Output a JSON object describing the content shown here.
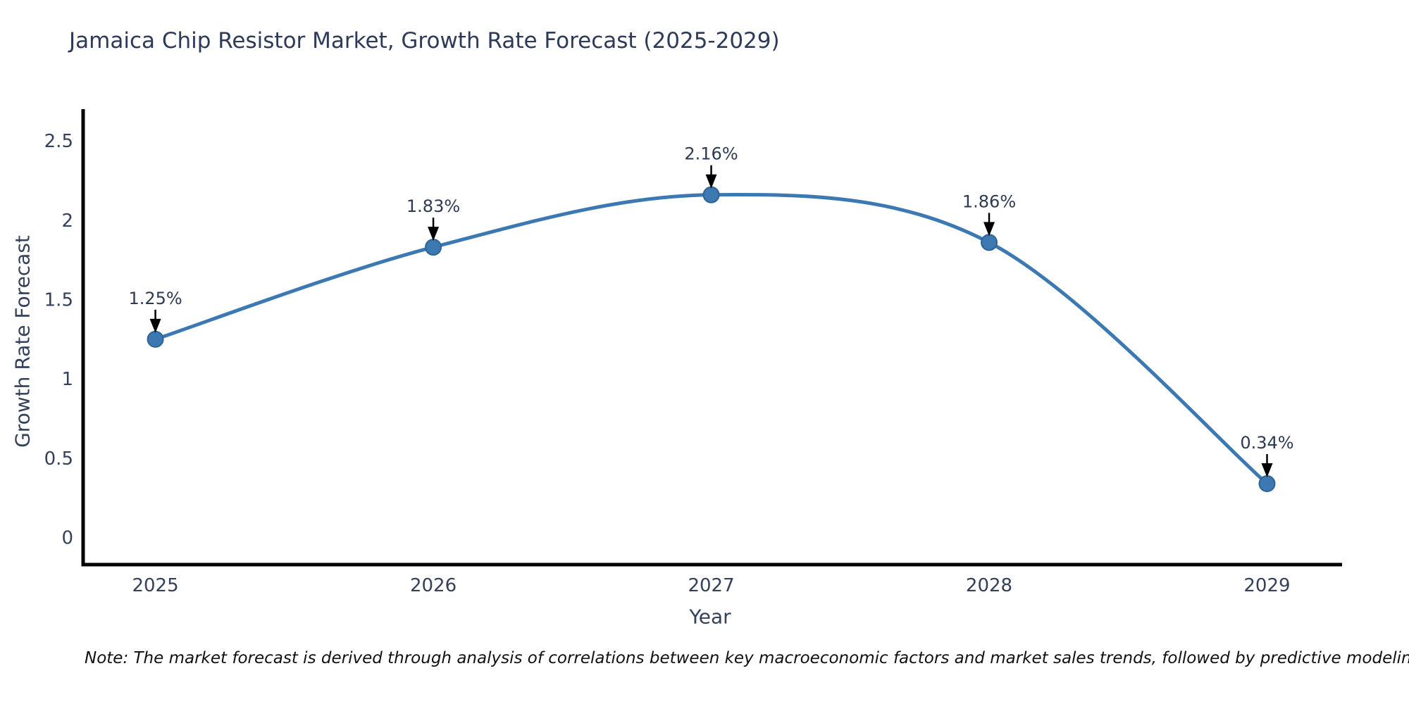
{
  "title": "Jamaica Chip Resistor Market, Growth Rate Forecast (2025-2029)",
  "note": "Note: The market forecast is derived through analysis of correlations between key macroeconomic factors and market sales trends, followed by predictive modeling to project future sales",
  "chart_data": {
    "type": "line",
    "title": "Jamaica Chip Resistor Market, Growth Rate Forecast (2025-2029)",
    "xlabel": "Year",
    "ylabel": "Growth Rate Forecast",
    "categories": [
      2025,
      2026,
      2027,
      2028,
      2029
    ],
    "series": [
      {
        "name": "Growth Rate Forecast",
        "values": [
          1.25,
          1.83,
          2.16,
          1.86,
          0.34
        ],
        "point_labels": [
          "1.25%",
          "1.83%",
          "2.16%",
          "1.86%",
          "0.34%"
        ]
      }
    ],
    "line_shape": "spline",
    "markers": true,
    "grid": false,
    "legend_position": "none",
    "xtick_labels": [
      "2025",
      "2026",
      "2027",
      "2028",
      "2029"
    ],
    "yticks": [
      0,
      0.5,
      1,
      1.5,
      2,
      2.5
    ],
    "ytick_labels": [
      "0",
      "0.5",
      "1",
      "1.5",
      "2",
      "2.5"
    ],
    "xlim": [
      2024.74,
      2029.27
    ],
    "ylim": [
      -0.17,
      2.7
    ],
    "colors": {
      "line": "#3c79b3",
      "marker_fill": "#3c79b3",
      "marker_edge": "#2e6394",
      "axis_spine": "#000000",
      "tick_text": "#33415c",
      "annotation_text": "#2d3a52",
      "annotation_arrow": "#000000",
      "note_text": "#111111"
    }
  }
}
